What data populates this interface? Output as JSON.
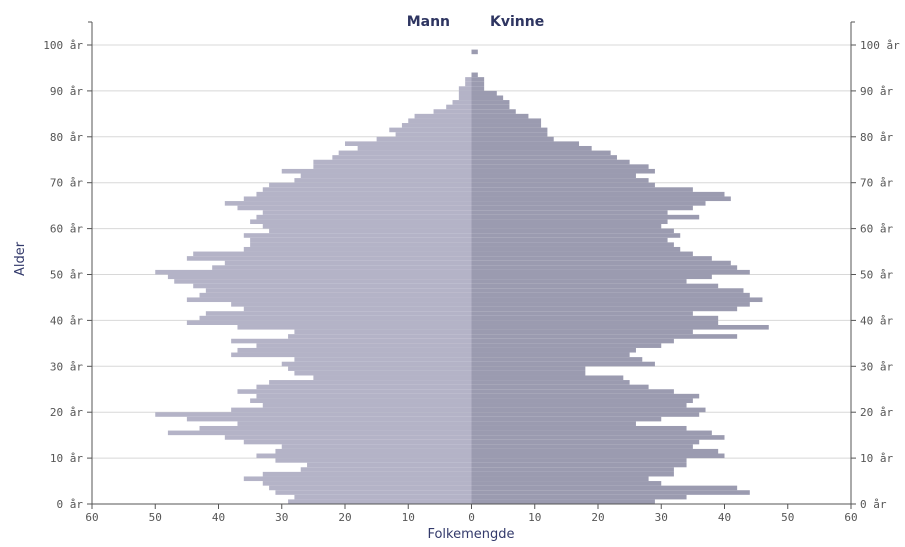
{
  "chart_data": {
    "type": "bar",
    "orientation": "horizontal-pyramid",
    "legend": [
      "Mann",
      "Kvinne"
    ],
    "xlabel": "Folkemengde",
    "ylabel": "Alder",
    "xlim": [
      -60,
      60
    ],
    "ylim": [
      0,
      100
    ],
    "x_ticks": [
      "60",
      "50",
      "40",
      "30",
      "20",
      "10",
      "0",
      "10",
      "20",
      "30",
      "40",
      "50",
      "60"
    ],
    "y_ticks": [
      "0 år",
      "10 år",
      "20 år",
      "30 år",
      "40 år",
      "50 år",
      "60 år",
      "70 år",
      "80 år",
      "90 år",
      "100 år"
    ],
    "grid": true,
    "colors": {
      "Mann": "#b4b3c7",
      "Kvinne": "#9b9bb0",
      "grid": "#d8d8d8"
    },
    "ages": [
      0,
      1,
      2,
      3,
      4,
      5,
      6,
      7,
      8,
      9,
      10,
      11,
      12,
      13,
      14,
      15,
      16,
      17,
      18,
      19,
      20,
      21,
      22,
      23,
      24,
      25,
      26,
      27,
      28,
      29,
      30,
      31,
      32,
      33,
      34,
      35,
      36,
      37,
      38,
      39,
      40,
      41,
      42,
      43,
      44,
      45,
      46,
      47,
      48,
      49,
      50,
      51,
      52,
      53,
      54,
      55,
      56,
      57,
      58,
      59,
      60,
      61,
      62,
      63,
      64,
      65,
      66,
      67,
      68,
      69,
      70,
      71,
      72,
      73,
      74,
      75,
      76,
      77,
      78,
      79,
      80,
      81,
      82,
      83,
      84,
      85,
      86,
      87,
      88,
      89,
      90,
      91,
      92,
      93,
      94,
      95,
      96,
      97,
      98
    ],
    "series": [
      {
        "name": "Mann",
        "values": [
          29,
          28,
          31,
          32,
          33,
          36,
          33,
          27,
          26,
          31,
          34,
          31,
          30,
          36,
          39,
          48,
          43,
          37,
          45,
          50,
          38,
          33,
          35,
          34,
          37,
          34,
          32,
          25,
          28,
          29,
          30,
          28,
          38,
          37,
          34,
          38,
          29,
          28,
          37,
          45,
          43,
          42,
          36,
          38,
          45,
          43,
          42,
          44,
          47,
          48,
          50,
          41,
          39,
          45,
          44,
          36,
          35,
          35,
          36,
          32,
          33,
          35,
          34,
          33,
          37,
          39,
          36,
          34,
          33,
          32,
          28,
          27,
          30,
          25,
          25,
          22,
          21,
          18,
          20,
          15,
          12,
          13,
          11,
          10,
          9,
          6,
          4,
          3,
          2,
          2,
          2,
          1,
          1,
          0,
          0,
          0,
          0,
          0,
          0
        ]
      },
      {
        "name": "Kvinne",
        "values": [
          29,
          34,
          44,
          42,
          30,
          28,
          32,
          32,
          34,
          34,
          40,
          39,
          35,
          36,
          40,
          38,
          34,
          26,
          30,
          36,
          37,
          34,
          35,
          36,
          32,
          28,
          25,
          24,
          18,
          18,
          29,
          27,
          25,
          26,
          30,
          32,
          42,
          35,
          47,
          39,
          39,
          35,
          42,
          44,
          46,
          44,
          43,
          39,
          34,
          38,
          44,
          42,
          41,
          38,
          35,
          33,
          32,
          31,
          33,
          32,
          30,
          31,
          36,
          31,
          35,
          37,
          41,
          40,
          35,
          29,
          28,
          26,
          29,
          28,
          25,
          23,
          22,
          19,
          17,
          13,
          12,
          12,
          11,
          11,
          9,
          7,
          6,
          6,
          5,
          4,
          2,
          2,
          2,
          1,
          0,
          0,
          0,
          0,
          1
        ]
      }
    ]
  }
}
